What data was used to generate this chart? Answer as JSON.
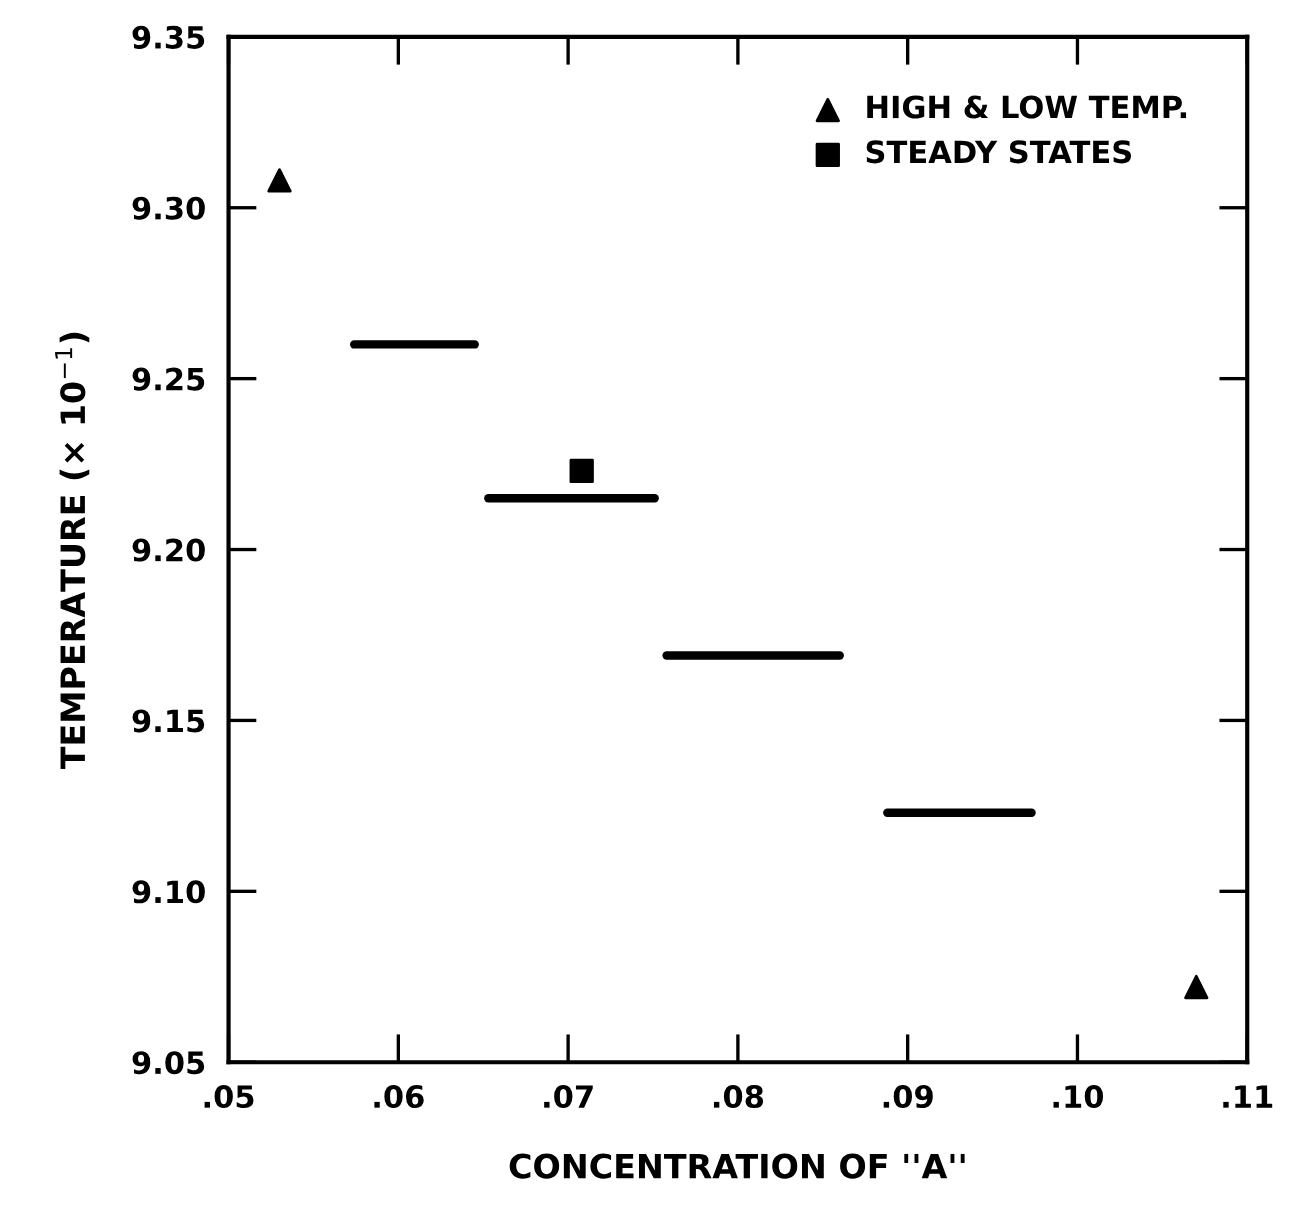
{
  "chart_data": {
    "type": "scatter",
    "xlabel": "CONCENTRATION OF ''A''",
    "ylabel": "TEMPERATURE (× 10$^{−1}$)",
    "xlim": [
      0.05,
      0.11
    ],
    "ylim": [
      9.05,
      9.35
    ],
    "xticks": [
      {
        "value": 0.05,
        "label": ".05"
      },
      {
        "value": 0.06,
        "label": ".06"
      },
      {
        "value": 0.07,
        "label": ".07"
      },
      {
        "value": 0.08,
        "label": ".08"
      },
      {
        "value": 0.09,
        "label": ".09"
      },
      {
        "value": 0.1,
        "label": ".10"
      },
      {
        "value": 0.11,
        "label": ".11"
      }
    ],
    "yticks": [
      {
        "value": 9.05,
        "label": "9.05"
      },
      {
        "value": 9.1,
        "label": "9.10"
      },
      {
        "value": 9.15,
        "label": "9.15"
      },
      {
        "value": 9.2,
        "label": "9.20"
      },
      {
        "value": 9.25,
        "label": "9.25"
      },
      {
        "value": 9.3,
        "label": "9.30"
      },
      {
        "value": 9.35,
        "label": "9.35"
      }
    ],
    "grid": false,
    "legend": "top right",
    "series": [
      {
        "name": "HIGH & LOW TEMP.",
        "marker": "triangle",
        "color": "#000000",
        "x": [
          0.053,
          0.107
        ],
        "values": [
          9.308,
          9.072
        ]
      },
      {
        "name": "STEADY STATES",
        "marker": "square",
        "color": "#000000",
        "x": [
          0.0708
        ],
        "values": [
          9.223
        ]
      },
      {
        "type": "line",
        "line_style": "solid",
        "color": "#000000",
        "x": [
          0.0574,
          0.0645
        ],
        "values": [
          9.26,
          9.26
        ]
      },
      {
        "type": "line",
        "line_style": "solid",
        "color": "#000000",
        "x": [
          0.0653,
          0.0751
        ],
        "values": [
          9.215,
          9.215
        ]
      },
      {
        "type": "line",
        "line_style": "solid",
        "color": "#000000",
        "x": [
          0.0758,
          0.086
        ],
        "values": [
          9.169,
          9.169
        ]
      },
      {
        "type": "line",
        "line_style": "solid",
        "color": "#000000",
        "x": [
          0.0888,
          0.0973
        ],
        "values": [
          9.123,
          9.123
        ]
      }
    ]
  }
}
